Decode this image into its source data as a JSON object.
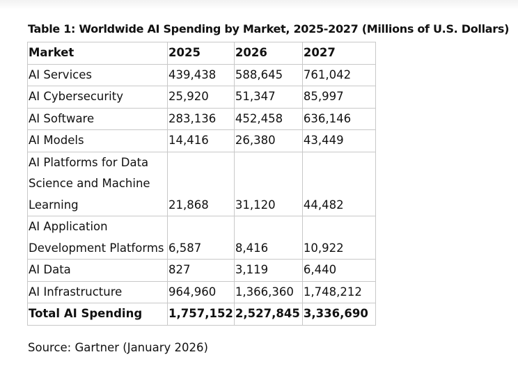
{
  "header": {
    "title": "Table 1: Worldwide AI Spending by Market, 2025-2027 (Millions of U.S. Dollars)"
  },
  "table": {
    "columns": [
      "Market",
      "2025",
      "2026",
      "2027"
    ],
    "rows": [
      [
        "AI Services",
        "439,438",
        "588,645",
        "761,042"
      ],
      [
        "AI Cybersecurity",
        "25,920",
        "51,347",
        "85,997"
      ],
      [
        "AI Software",
        "283,136",
        "452,458",
        "636,146"
      ],
      [
        "AI Models",
        "14,416",
        "26,380",
        "43,449"
      ],
      [
        "AI Platforms for Data Science and Machine Learning",
        "21,868",
        "31,120",
        "44,482"
      ],
      [
        "AI Application Development Platforms",
        "6,587",
        "8,416",
        "10,922"
      ],
      [
        "AI Data",
        "827",
        "3,119",
        "6,440"
      ],
      [
        "AI Infrastructure",
        "964,960",
        "1,366,360",
        "1,748,212"
      ],
      [
        "Total AI Spending",
        "1,757,152",
        "2,527,845",
        "3,336,690"
      ]
    ]
  },
  "source": "Source: Gartner (January 2026)"
}
